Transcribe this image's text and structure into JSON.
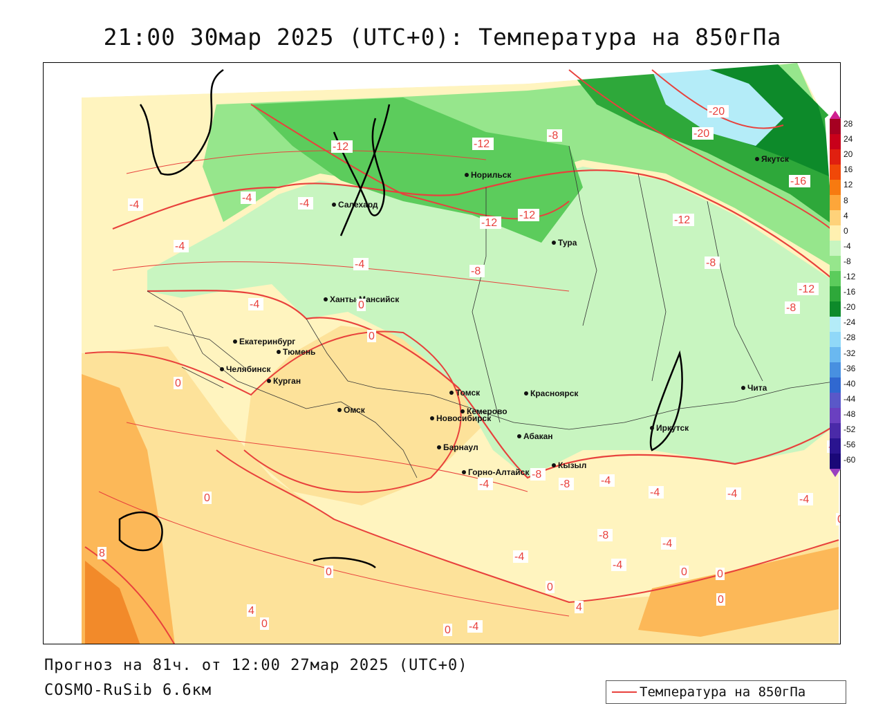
{
  "title": "21:00 30мар 2025 (UTC+0): Температура на 850гПа",
  "footer": {
    "forecast": "Прогноз на 81ч. от 12:00 27мар 2025 (UTC+0)",
    "model": "COSMO-RuSib 6.6км"
  },
  "legend": {
    "label": "Температура на 850гПа",
    "line_color": "#e8413c"
  },
  "colorbar": {
    "labels": [
      "28",
      "24",
      "20",
      "16",
      "12",
      "8",
      "4",
      "0",
      "-4",
      "-8",
      "-12",
      "-16",
      "-20",
      "-24",
      "-28",
      "-32",
      "-36",
      "-40",
      "-44",
      "-48",
      "-52",
      "-56",
      "-60"
    ],
    "colors": [
      "#a50021",
      "#c8001a",
      "#e02010",
      "#f04808",
      "#f77a10",
      "#fda63a",
      "#fed27a",
      "#fff0b0",
      "#c8f5c0",
      "#96e68c",
      "#5ccc5c",
      "#2ea83a",
      "#0d8a2a",
      "#b4ecf8",
      "#90d8f8",
      "#6ab8f0",
      "#4890e0",
      "#3068d0",
      "#5a58c8",
      "#6a40c0",
      "#4a2aa8",
      "#2a1490",
      "#1a0878"
    ]
  },
  "cities": [
    {
      "name": "Салехард"
    },
    {
      "name": "Норильск"
    },
    {
      "name": "Тура"
    },
    {
      "name": "Якутск"
    },
    {
      "name": "Ханты-Мансийск"
    },
    {
      "name": "Екатеринбург"
    },
    {
      "name": "Тюмень"
    },
    {
      "name": "Челябинск"
    },
    {
      "name": "Курган"
    },
    {
      "name": "Омск"
    },
    {
      "name": "Новосибирск"
    },
    {
      "name": "Томск"
    },
    {
      "name": "Кемерово"
    },
    {
      "name": "Барнаул"
    },
    {
      "name": "Красноярск"
    },
    {
      "name": "Абакан"
    },
    {
      "name": "Горно-Алтайск"
    },
    {
      "name": "Кызыл"
    },
    {
      "name": "Иркутск"
    },
    {
      "name": "Чита"
    }
  ],
  "isotherm_labels": [
    "-12",
    "-12",
    "-8",
    "-20",
    "-20",
    "-16",
    "-4",
    "-4",
    "-4",
    "-12",
    "-12",
    "-12",
    "-4",
    "-8",
    "-8",
    "-12",
    "-8",
    "-4",
    "-4",
    "0",
    "0",
    "0",
    "0",
    "8",
    "4",
    "0",
    "0",
    "0",
    "-4",
    "-8",
    "-4",
    "-8",
    "-4",
    "-4",
    "-4",
    "-4",
    "-4",
    "0",
    "-8",
    "-4",
    "-4",
    "0",
    "0",
    "0",
    "4",
    "0",
    "-4"
  ]
}
